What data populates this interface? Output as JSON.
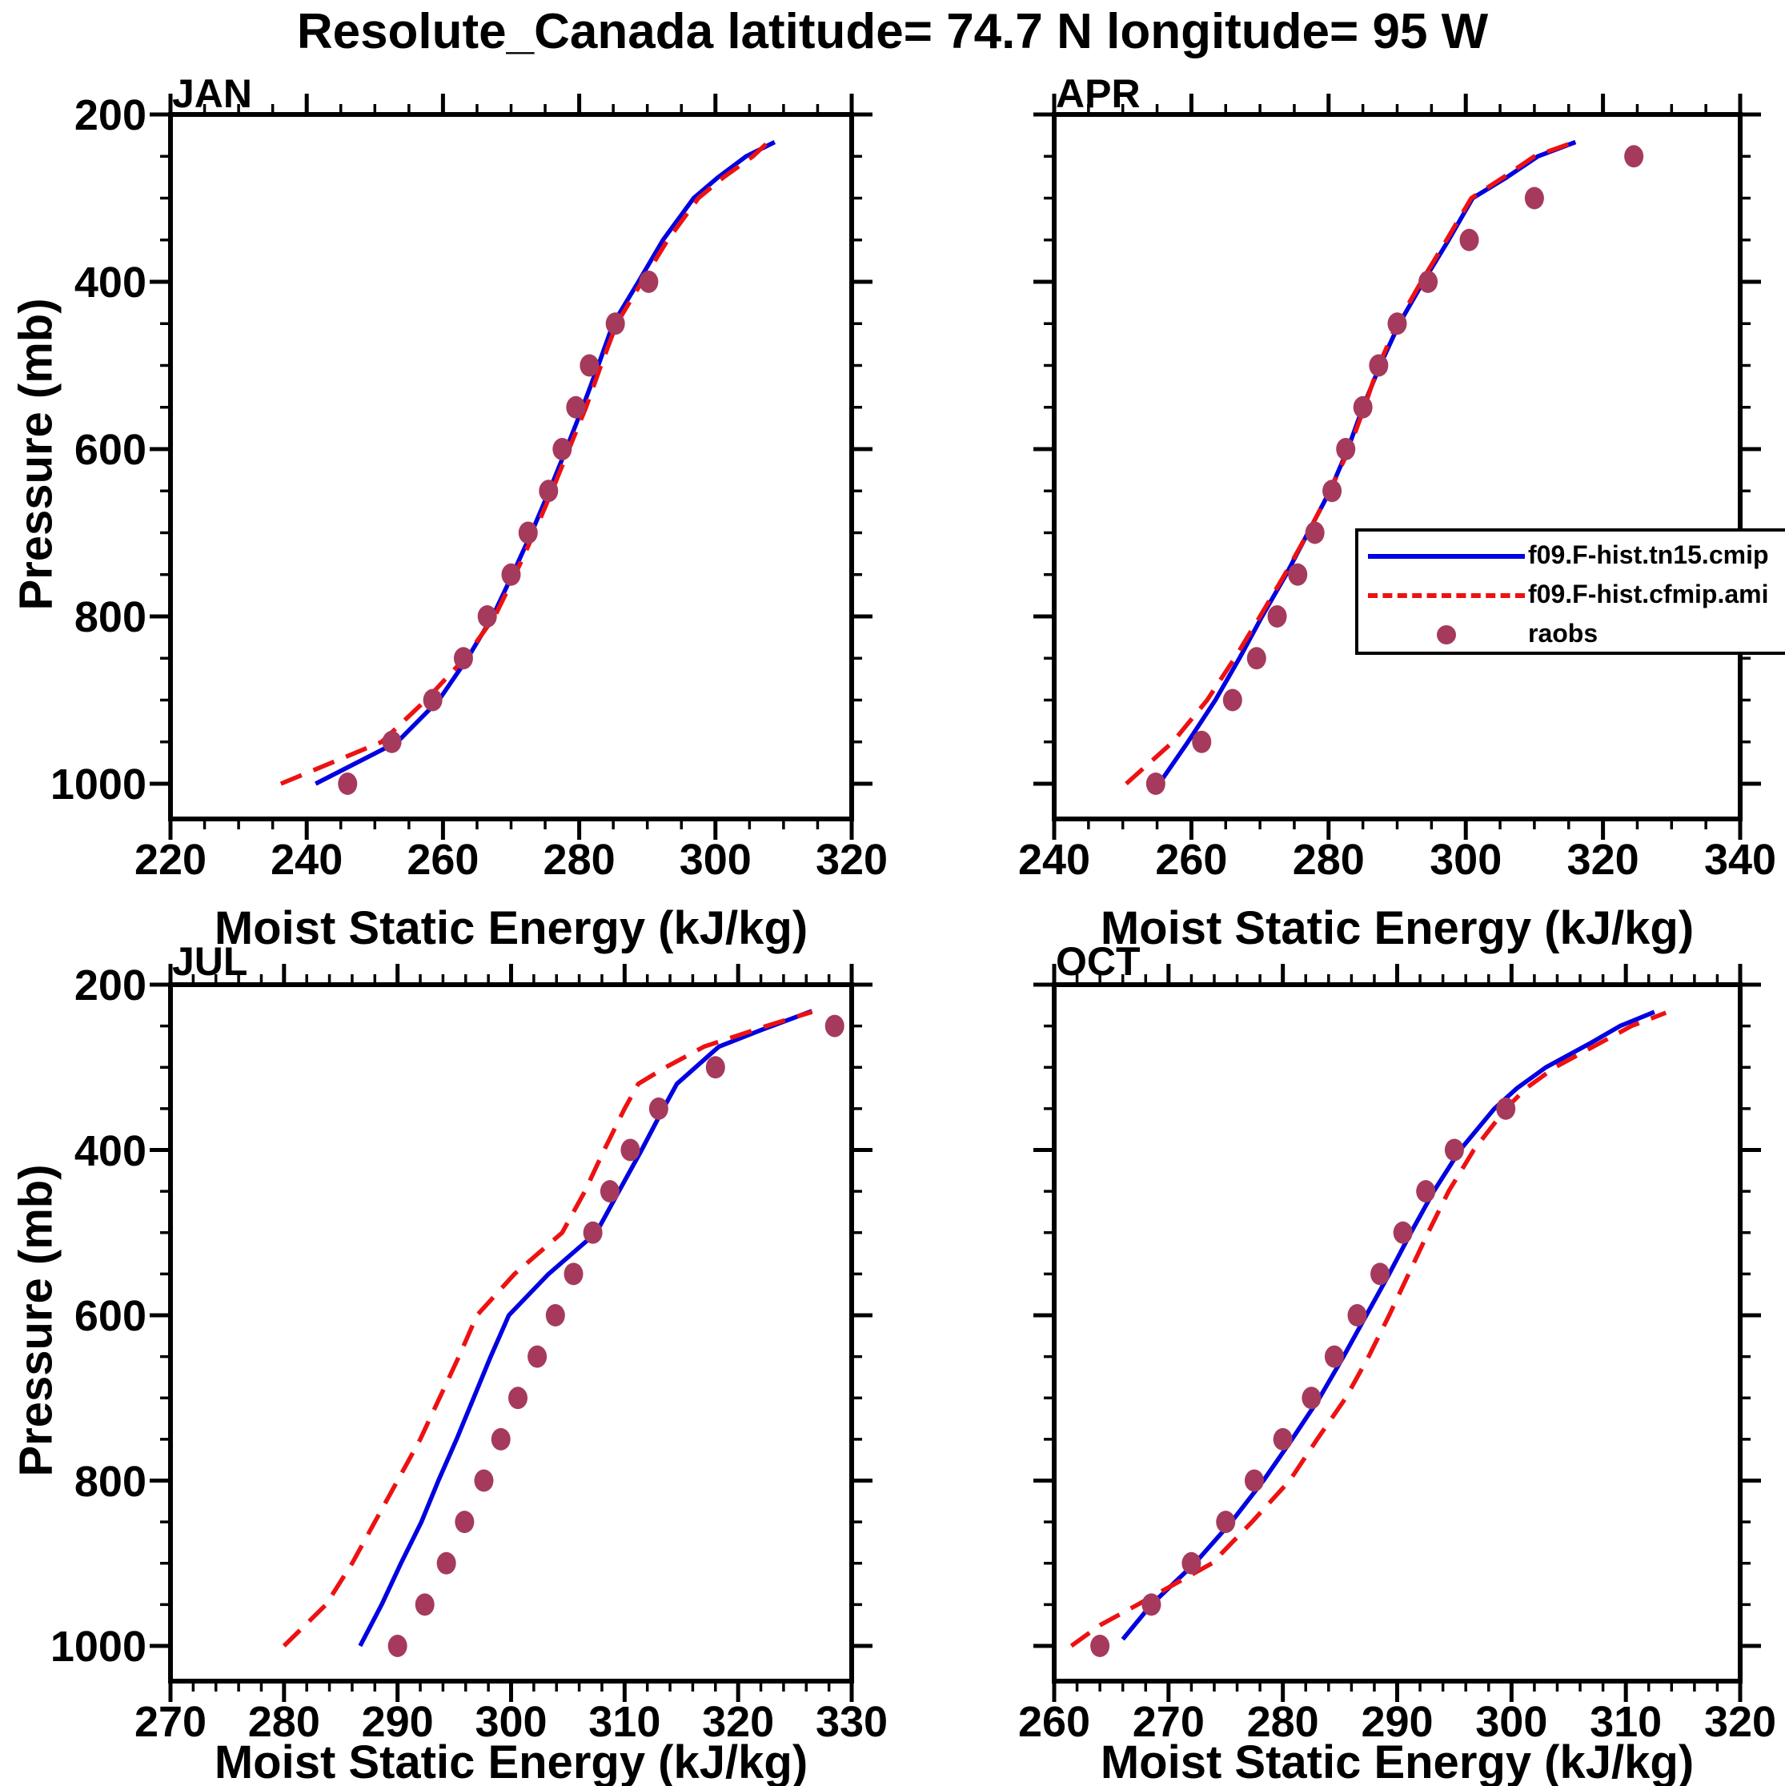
{
  "title": "Resolute_Canada  latitude= 74.7 N longitude= 95 W",
  "axes": {
    "xlabel": "Moist Static Energy (kJ/kg)",
    "ylabel": "Pressure (mb)"
  },
  "legend": {
    "entries": [
      {
        "label": "f09.F-hist.tn15.cmip",
        "color": "#0000e0",
        "style": "solid-line"
      },
      {
        "label": "f09.F-hist.cfmip.ami",
        "color": "#ee1111",
        "style": "dashed-line"
      },
      {
        "label": "raobs",
        "color": "#a63a5c",
        "style": "dot"
      }
    ]
  },
  "colors": {
    "model1": "#0000e0",
    "model2": "#ee1111",
    "obs": "#a63a5c",
    "axis": "#000000"
  },
  "chart_data": [
    {
      "id": "jan",
      "type": "line",
      "title": "JAN",
      "xlabel": "Moist Static Energy (kJ/kg)",
      "ylabel": "Pressure (mb)",
      "xlim": [
        220,
        320
      ],
      "xtick_major": 20,
      "xtick_minor": 5,
      "ylim": [
        200,
        1000
      ],
      "ytick_major": 200,
      "ytick_minor": 50,
      "y_inverted": true,
      "series": [
        {
          "name": "f09.F-hist.tn15.cmip",
          "style": "solid",
          "color": "#0000e0",
          "points": [
            [
              241.3,
              1000
            ],
            [
              253.3,
              950
            ],
            [
              259.4,
              900
            ],
            [
              263.6,
              850
            ],
            [
              267.3,
              800
            ],
            [
              270.2,
              750
            ],
            [
              273,
              700
            ],
            [
              275.6,
              650
            ],
            [
              278.1,
              600
            ],
            [
              280.5,
              550
            ],
            [
              282.8,
              500
            ],
            [
              285,
              450
            ],
            [
              288.7,
              400
            ],
            [
              292.3,
              350
            ],
            [
              296.8,
              300
            ],
            [
              300.4,
              275
            ],
            [
              304.5,
              250
            ],
            [
              308.7,
              233
            ]
          ]
        },
        {
          "name": "f09.F-hist.cfmip.ami",
          "style": "dashed",
          "color": "#ee1111",
          "points": [
            [
              236.2,
              1000
            ],
            [
              251,
              950
            ],
            [
              257.5,
              900
            ],
            [
              263.2,
              850
            ],
            [
              267.6,
              800
            ],
            [
              270.6,
              750
            ],
            [
              273.4,
              700
            ],
            [
              276,
              650
            ],
            [
              278.5,
              600
            ],
            [
              281,
              550
            ],
            [
              283.2,
              500
            ],
            [
              285.5,
              450
            ],
            [
              289.2,
              400
            ],
            [
              293,
              350
            ],
            [
              297.5,
              300
            ],
            [
              301.2,
              275
            ],
            [
              305.5,
              250
            ],
            [
              308,
              231
            ]
          ]
        },
        {
          "name": "raobs",
          "style": "dots",
          "color": "#a63a5c",
          "points": [
            [
              246,
              1000
            ],
            [
              252.5,
              950
            ],
            [
              258.5,
              900
            ],
            [
              263,
              850
            ],
            [
              266.5,
              800
            ],
            [
              270,
              750
            ],
            [
              272.5,
              700
            ],
            [
              275.5,
              650
            ],
            [
              277.5,
              600
            ],
            [
              279.5,
              550
            ],
            [
              281.5,
              500
            ],
            [
              285.3,
              450
            ],
            [
              290.2,
              400
            ]
          ]
        }
      ]
    },
    {
      "id": "apr",
      "type": "line",
      "title": "APR",
      "xlabel": "Moist Static Energy (kJ/kg)",
      "ylabel": "Pressure (mb)",
      "xlim": [
        240,
        340
      ],
      "xtick_major": 20,
      "xtick_minor": 5,
      "ylim": [
        200,
        1000
      ],
      "ytick_major": 200,
      "ytick_minor": 50,
      "y_inverted": true,
      "series": [
        {
          "name": "f09.F-hist.tn15.cmip",
          "style": "solid",
          "color": "#0000e0",
          "points": [
            [
              255.3,
              1000
            ],
            [
              259.5,
              950
            ],
            [
              263.5,
              900
            ],
            [
              267,
              850
            ],
            [
              270.3,
              800
            ],
            [
              273.8,
              750
            ],
            [
              277,
              700
            ],
            [
              280.2,
              650
            ],
            [
              282.8,
              600
            ],
            [
              285,
              550
            ],
            [
              287.5,
              500
            ],
            [
              290.3,
              450
            ],
            [
              293.8,
              400
            ],
            [
              297.5,
              350
            ],
            [
              301,
              300
            ],
            [
              306,
              275
            ],
            [
              310.5,
              250
            ],
            [
              316,
              233
            ]
          ]
        },
        {
          "name": "f09.F-hist.cfmip.ami",
          "style": "dashed",
          "color": "#ee1111",
          "points": [
            [
              250.5,
              1000
            ],
            [
              257.3,
              950
            ],
            [
              262.3,
              900
            ],
            [
              266.3,
              850
            ],
            [
              270,
              800
            ],
            [
              273.6,
              750
            ],
            [
              277,
              700
            ],
            [
              280.2,
              650
            ],
            [
              283,
              600
            ],
            [
              285.2,
              550
            ],
            [
              287.3,
              500
            ],
            [
              290,
              450
            ],
            [
              293.5,
              400
            ],
            [
              297.2,
              350
            ],
            [
              300.8,
              300
            ],
            [
              305.5,
              275
            ],
            [
              310,
              250
            ],
            [
              315.5,
              234
            ]
          ]
        },
        {
          "name": "raobs",
          "style": "dots",
          "color": "#a63a5c",
          "points": [
            [
              254.8,
              1000
            ],
            [
              261.5,
              950
            ],
            [
              266,
              900
            ],
            [
              269.5,
              850
            ],
            [
              272.5,
              800
            ],
            [
              275.5,
              750
            ],
            [
              278,
              700
            ],
            [
              280.5,
              650
            ],
            [
              282.5,
              600
            ],
            [
              285,
              550
            ],
            [
              287.3,
              500
            ],
            [
              290,
              450
            ],
            [
              294.5,
              400
            ],
            [
              300.5,
              350
            ],
            [
              310,
              300
            ],
            [
              324.5,
              250
            ]
          ]
        }
      ]
    },
    {
      "id": "jul",
      "type": "line",
      "title": "JUL",
      "xlabel": "Moist Static Energy (kJ/kg)",
      "ylabel": "Pressure (mb)",
      "xlim": [
        270,
        330
      ],
      "xtick_major": 10,
      "xtick_minor": 2,
      "ylim": [
        200,
        1000
      ],
      "ytick_major": 200,
      "ytick_minor": 50,
      "y_inverted": true,
      "series": [
        {
          "name": "f09.F-hist.tn15.cmip",
          "style": "solid",
          "color": "#0000e0",
          "points": [
            [
              286.7,
              1000
            ],
            [
              288.6,
              950
            ],
            [
              290.3,
              900
            ],
            [
              292.1,
              850
            ],
            [
              293.6,
              800
            ],
            [
              295.2,
              750
            ],
            [
              296.7,
              700
            ],
            [
              298.2,
              650
            ],
            [
              299.8,
              600
            ],
            [
              303.3,
              550
            ],
            [
              307.5,
              500
            ],
            [
              309.5,
              450
            ],
            [
              311.5,
              400
            ],
            [
              313.4,
              350
            ],
            [
              314.6,
              320
            ],
            [
              318.3,
              275
            ],
            [
              322,
              255
            ],
            [
              326.5,
              232
            ]
          ]
        },
        {
          "name": "f09.F-hist.cfmip.ami",
          "style": "dashed",
          "color": "#ee1111",
          "points": [
            [
              280,
              1000
            ],
            [
              283.7,
              950
            ],
            [
              286,
              900
            ],
            [
              288,
              850
            ],
            [
              290,
              800
            ],
            [
              292,
              750
            ],
            [
              293.7,
              700
            ],
            [
              295.4,
              650
            ],
            [
              297,
              600
            ],
            [
              300.3,
              550
            ],
            [
              304.5,
              500
            ],
            [
              306.5,
              450
            ],
            [
              308.2,
              400
            ],
            [
              310,
              350
            ],
            [
              311.2,
              320
            ],
            [
              313.6,
              300
            ],
            [
              317,
              275
            ],
            [
              322.5,
              250
            ],
            [
              326.5,
              233
            ]
          ]
        },
        {
          "name": "raobs",
          "style": "dots",
          "color": "#a63a5c",
          "points": [
            [
              290,
              1000
            ],
            [
              292.4,
              950
            ],
            [
              294.3,
              900
            ],
            [
              295.9,
              850
            ],
            [
              297.6,
              800
            ],
            [
              299.1,
              750
            ],
            [
              300.6,
              700
            ],
            [
              302.3,
              650
            ],
            [
              303.9,
              600
            ],
            [
              305.5,
              550
            ],
            [
              307.2,
              500
            ],
            [
              308.7,
              450
            ],
            [
              310.5,
              400
            ],
            [
              313,
              350
            ],
            [
              318,
              300
            ],
            [
              328.5,
              250
            ]
          ]
        }
      ]
    },
    {
      "id": "oct",
      "type": "line",
      "title": "OCT",
      "xlabel": "Moist Static Energy (kJ/kg)",
      "ylabel": "Pressure (mb)",
      "xlim": [
        260,
        320
      ],
      "xtick_major": 10,
      "xtick_minor": 2,
      "ylim": [
        200,
        1000
      ],
      "ytick_major": 200,
      "ytick_minor": 50,
      "y_inverted": true,
      "series": [
        {
          "name": "f09.F-hist.tn15.cmip",
          "style": "solid",
          "color": "#0000e0",
          "points": [
            [
              266,
              992
            ],
            [
              268.5,
              950
            ],
            [
              272.3,
              900
            ],
            [
              275.5,
              850
            ],
            [
              278.3,
              800
            ],
            [
              280.8,
              750
            ],
            [
              283.2,
              700
            ],
            [
              285.3,
              650
            ],
            [
              287.3,
              600
            ],
            [
              289.3,
              550
            ],
            [
              291.2,
              500
            ],
            [
              293.2,
              450
            ],
            [
              295.5,
              400
            ],
            [
              298.5,
              350
            ],
            [
              300.5,
              325
            ],
            [
              303,
              300
            ],
            [
              307,
              270
            ],
            [
              309.5,
              250
            ],
            [
              312.5,
              233
            ]
          ]
        },
        {
          "name": "f09.F-hist.cfmip.ami",
          "style": "dashed",
          "color": "#ee1111",
          "points": [
            [
              261.5,
              1000
            ],
            [
              264,
              975
            ],
            [
              267.3,
              950
            ],
            [
              273.8,
              900
            ],
            [
              277.3,
              850
            ],
            [
              280.6,
              800
            ],
            [
              283,
              750
            ],
            [
              285.5,
              700
            ],
            [
              287.5,
              650
            ],
            [
              289.3,
              600
            ],
            [
              291,
              550
            ],
            [
              292.7,
              500
            ],
            [
              294.5,
              450
            ],
            [
              296.7,
              400
            ],
            [
              299.5,
              350
            ],
            [
              301.3,
              325
            ],
            [
              303.8,
              300
            ],
            [
              310.5,
              250
            ],
            [
              313.5,
              234
            ]
          ]
        },
        {
          "name": "raobs",
          "style": "dots",
          "color": "#a63a5c",
          "points": [
            [
              264,
              1000
            ],
            [
              268.5,
              950
            ],
            [
              272,
              900
            ],
            [
              275,
              850
            ],
            [
              277.5,
              800
            ],
            [
              280,
              750
            ],
            [
              282.5,
              700
            ],
            [
              284.5,
              650
            ],
            [
              286.5,
              600
            ],
            [
              288.5,
              550
            ],
            [
              290.5,
              500
            ],
            [
              292.5,
              450
            ],
            [
              295,
              400
            ],
            [
              299.5,
              350
            ]
          ]
        }
      ]
    }
  ]
}
